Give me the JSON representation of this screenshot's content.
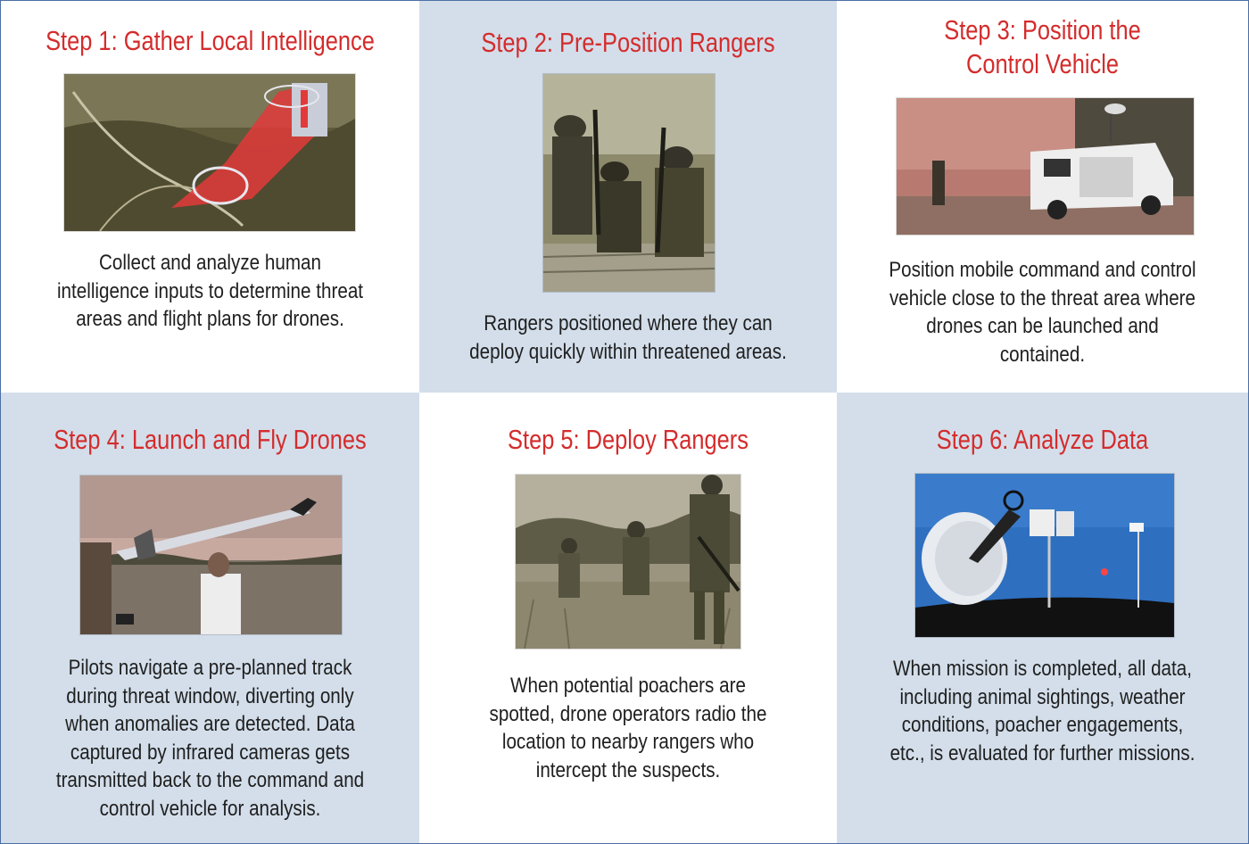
{
  "steps": [
    {
      "title": "Step 1: Gather Local Intelligence",
      "description": "Collect and analyze human intelligence inputs to determine threat areas and flight plans for drones.",
      "image": "terrain-map-icon"
    },
    {
      "title": "Step 2: Pre-Position Rangers",
      "description": "Rangers positioned where they can deploy quickly within threatened areas.",
      "image": "rangers-on-truck-icon"
    },
    {
      "title": "Step 3: Position the Control Vehicle",
      "description": "Position mobile command and control vehicle close to the threat area where drones can be launched and contained.",
      "image": "control-van-icon"
    },
    {
      "title": "Step 4: Launch and Fly Drones",
      "description": "Pilots navigate a pre-planned track during threat window, diverting only when anomalies are detected. Data captured by infrared cameras gets transmitted back to the command and control vehicle for analysis.",
      "image": "drone-launch-icon"
    },
    {
      "title": "Step 5: Deploy Rangers",
      "description": "When potential poachers are spotted, drone operators radio the location to nearby rangers who intercept the suspects.",
      "image": "rangers-patrol-icon"
    },
    {
      "title": "Step 6: Analyze Data",
      "description": "When mission is completed, all data, including animal sightings, weather conditions, poacher engagements, etc., is evaluated for further missions.",
      "image": "satellite-dish-icon"
    }
  ],
  "colors": {
    "title": "#d42c2c",
    "text": "#1f1f1f",
    "panel_blue": "#d3deea",
    "panel_white": "#ffffff",
    "border": "#4a6fa5"
  }
}
